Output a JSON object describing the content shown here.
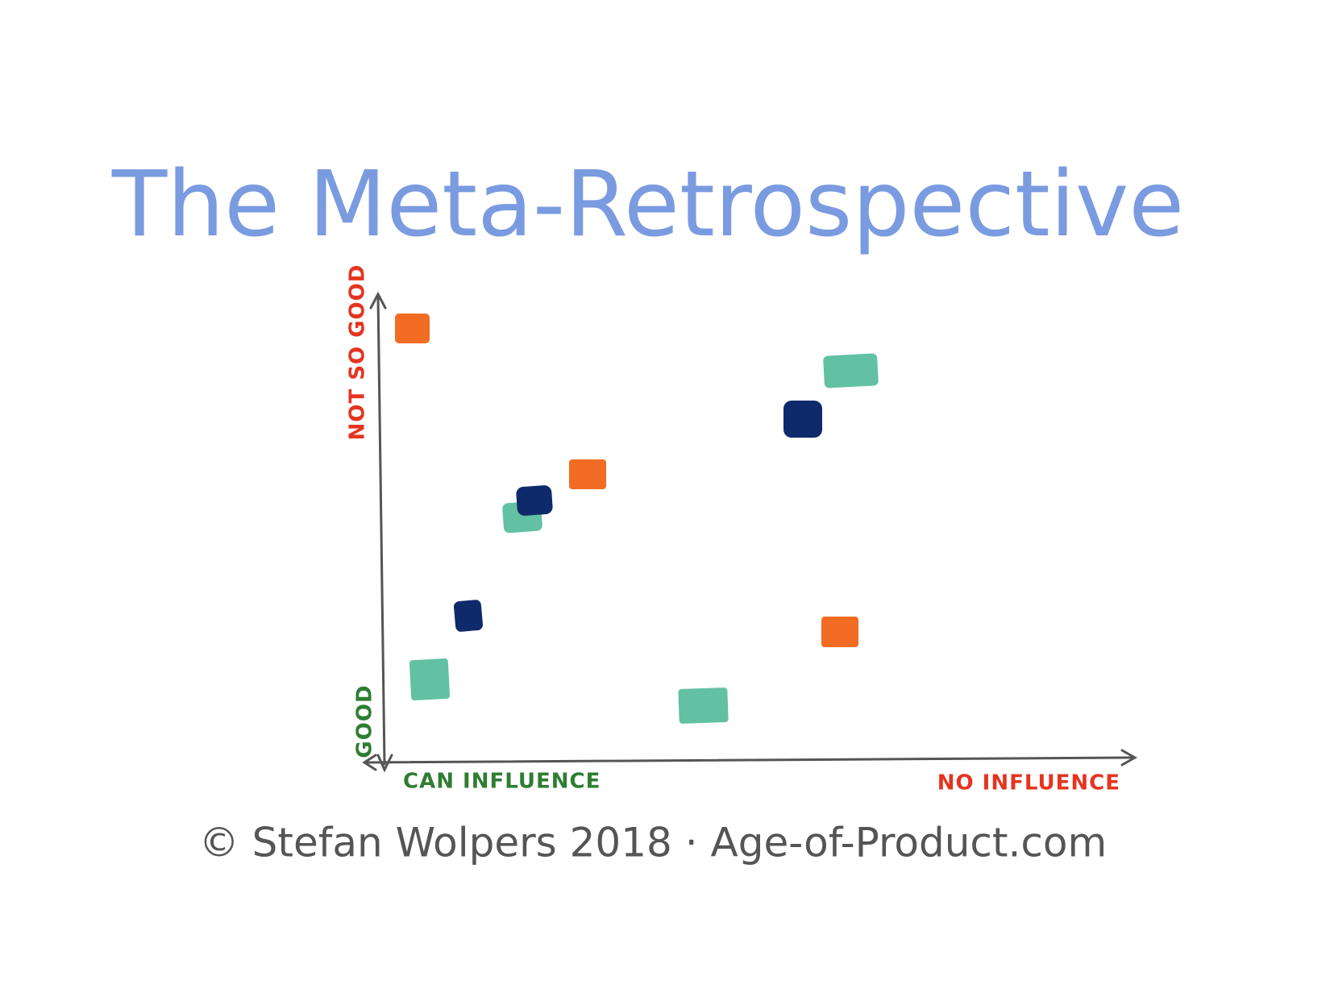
{
  "title": "The Meta-Retrospective",
  "y_axis": {
    "top_label": "NOT SO GOOD",
    "bottom_label": "GOOD"
  },
  "x_axis": {
    "left_label": "CAN INFLUENCE",
    "right_label": "NO INFLUENCE"
  },
  "footer": "© Stefan Wolpers 2018 · Age-of-Product.com"
}
